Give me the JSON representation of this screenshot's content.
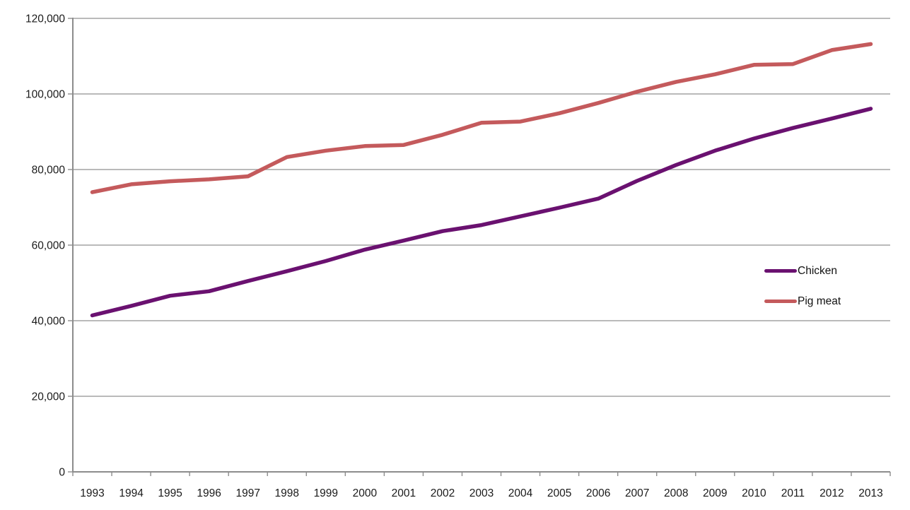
{
  "chart_data": {
    "type": "line",
    "title": "",
    "xlabel": "",
    "ylabel": "",
    "x": [
      "1993",
      "1994",
      "1995",
      "1996",
      "1997",
      "1998",
      "1999",
      "2000",
      "2001",
      "2002",
      "2003",
      "2004",
      "2005",
      "2006",
      "2007",
      "2008",
      "2009",
      "2010",
      "2011",
      "2012",
      "2013"
    ],
    "series": [
      {
        "name": "Chicken",
        "color": "#6A1170",
        "values": [
          41400,
          43900,
          46600,
          47800,
          50500,
          53100,
          55800,
          58800,
          61200,
          63700,
          65300,
          67600,
          69900,
          72300,
          77000,
          81200,
          85000,
          88200,
          91000,
          93500,
          96100
        ]
      },
      {
        "name": "Pig meat",
        "color": "#C45A5C",
        "values": [
          74000,
          76100,
          76900,
          77400,
          78200,
          83300,
          85000,
          86200,
          86500,
          89200,
          92400,
          92700,
          94900,
          97600,
          100600,
          103200,
          105200,
          107700,
          107900,
          111600,
          113200
        ]
      }
    ],
    "ylim": [
      0,
      120000
    ],
    "ytick_interval": 20000,
    "ytick_labels": [
      "0",
      "20,000",
      "40,000",
      "60,000",
      "80,000",
      "100,000",
      "120,000"
    ],
    "grid": true,
    "legend_position": "middle-right"
  },
  "colors": {
    "background": "#FFFFFF",
    "gridline": "#A3A3A3",
    "axis": "#8C8C8C",
    "tick_text": "#1A1A1A",
    "legend_text": "#111111"
  }
}
